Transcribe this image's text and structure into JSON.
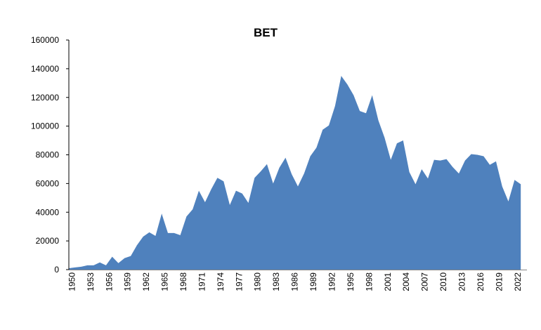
{
  "chart_data": {
    "type": "area",
    "title": "BET",
    "xlabel": "",
    "ylabel": "",
    "ylim": [
      0,
      160000
    ],
    "yticks": [
      "0",
      "20000",
      "40000",
      "60000",
      "80000",
      "100000",
      "120000",
      "140000",
      "160000"
    ],
    "xtick_labels": [
      "1950",
      "1953",
      "1956",
      "1959",
      "1962",
      "1965",
      "1968",
      "1971",
      "1974",
      "1977",
      "1980",
      "1983",
      "1986",
      "1989",
      "1992",
      "1995",
      "1998",
      "2001",
      "2004",
      "2007",
      "2010",
      "2013",
      "2016",
      "2019",
      "2022"
    ],
    "color": "#4f81bd",
    "grid": false,
    "legend": "none",
    "x": [
      1950,
      1951,
      1952,
      1953,
      1954,
      1955,
      1956,
      1957,
      1958,
      1959,
      1960,
      1961,
      1962,
      1963,
      1964,
      1965,
      1966,
      1967,
      1968,
      1969,
      1970,
      1971,
      1972,
      1973,
      1974,
      1975,
      1976,
      1977,
      1978,
      1979,
      1980,
      1981,
      1982,
      1983,
      1984,
      1985,
      1986,
      1987,
      1988,
      1989,
      1990,
      1991,
      1992,
      1993,
      1994,
      1995,
      1996,
      1997,
      1998,
      1999,
      2000,
      2001,
      2002,
      2003,
      2004,
      2005,
      2006,
      2007,
      2008,
      2009,
      2010,
      2011,
      2012,
      2013,
      2014,
      2015,
      2016,
      2017,
      2018,
      2019,
      2020,
      2021,
      2022,
      2023
    ],
    "values": [
      1000,
      1500,
      2000,
      3000,
      3000,
      5000,
      3000,
      9000,
      4500,
      8000,
      9500,
      17000,
      23000,
      26000,
      23500,
      39000,
      25500,
      25500,
      24000,
      37000,
      42000,
      55000,
      47000,
      56000,
      64000,
      61500,
      45000,
      55000,
      53000,
      46500,
      64000,
      68500,
      73500,
      60000,
      71000,
      78000,
      66500,
      58000,
      67000,
      79000,
      85000,
      97500,
      100500,
      114000,
      135000,
      129000,
      121500,
      110500,
      109000,
      121500,
      104000,
      92000,
      76500,
      88000,
      90000,
      68000,
      59500,
      70000,
      63500,
      76500,
      76000,
      77000,
      71500,
      67000,
      76000,
      80500,
      80000,
      79000,
      73000,
      75500,
      58000,
      47500,
      62500,
      59500
    ]
  }
}
